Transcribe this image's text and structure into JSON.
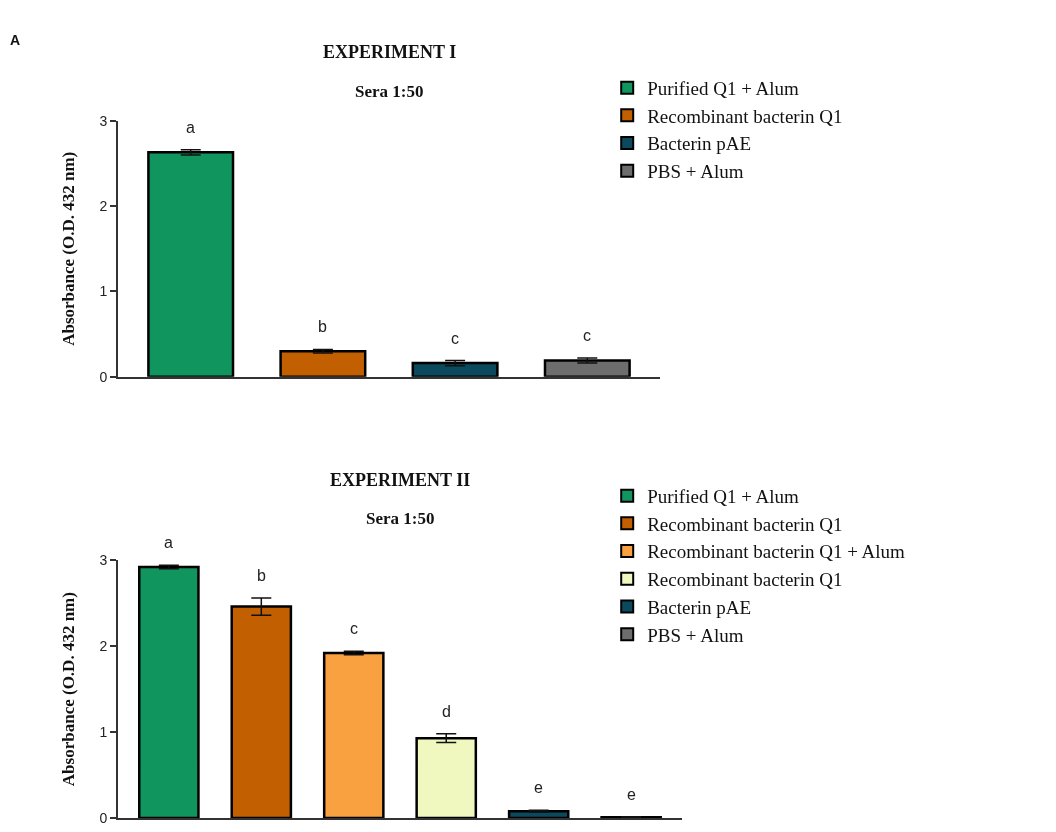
{
  "chart_data": [
    {
      "type": "bar",
      "title": "EXPERIMENT I",
      "subtitle": "Sera 1:50",
      "ylabel": "Absorbance (O.D. 432 nm)",
      "categories": [
        null,
        null,
        null,
        null
      ],
      "ylim": [
        0,
        3
      ],
      "yticks": [
        0,
        1,
        2,
        3
      ],
      "legend": "right",
      "tick_labels": "y",
      "series": [
        {
          "name": "Purified Q1 + Alum",
          "color": "#10955f",
          "values": [
            2.63,
            null,
            null,
            null
          ],
          "errors": [
            0.03,
            null,
            null,
            null
          ]
        },
        {
          "name": "Recombinant bacterin Q1",
          "color": "#c25f00",
          "values": [
            null,
            0.3,
            null,
            null
          ],
          "errors": [
            null,
            0.02,
            null,
            null
          ]
        },
        {
          "name": "Bacterin pAE",
          "color": "#0b4a5e",
          "values": [
            null,
            null,
            0.16,
            null
          ],
          "errors": [
            null,
            null,
            0.03,
            null
          ]
        },
        {
          "name": "PBS + Alum",
          "color": "#6d6d6d",
          "values": [
            null,
            null,
            null,
            0.19
          ],
          "errors": [
            null,
            null,
            null,
            0.03
          ]
        }
      ],
      "annotations": [
        "A",
        "a",
        "b",
        "c",
        "c"
      ]
    },
    {
      "type": "bar",
      "title": "EXPERIMENT II",
      "subtitle": "Sera 1:50",
      "ylabel": "Absorbance (O.D. 432 nm)",
      "categories": [
        null,
        null,
        null,
        null,
        null,
        null
      ],
      "ylim": [
        0,
        3
      ],
      "yticks": [
        0,
        1,
        2,
        3
      ],
      "legend": "right",
      "tick_labels": "y",
      "series": [
        {
          "name": "Purified Q1 + Alum",
          "color": "#10955f",
          "values": [
            2.92,
            null,
            null,
            null,
            null,
            null
          ],
          "errors": [
            0.02,
            null,
            null,
            null,
            null,
            null
          ]
        },
        {
          "name": "Recombinant bacterin Q1",
          "color": "#c25f00",
          "values": [
            null,
            2.46,
            null,
            null,
            null,
            null
          ],
          "errors": [
            null,
            0.1,
            null,
            null,
            null,
            null
          ]
        },
        {
          "name": "Recombinant bacterin Q1 + Alum",
          "color": "#f9a040",
          "values": [
            null,
            null,
            1.92,
            null,
            null,
            null
          ],
          "errors": [
            null,
            null,
            0.02,
            null,
            null,
            null
          ]
        },
        {
          "name": "Recombinant bacterin Q1",
          "color": "#f0f8c0",
          "values": [
            null,
            null,
            null,
            0.93,
            null,
            null
          ],
          "errors": [
            null,
            null,
            null,
            0.05,
            null,
            null
          ]
        },
        {
          "name": "Bacterin pAE",
          "color": "#0b4a5e",
          "values": [
            null,
            null,
            null,
            null,
            0.08,
            null
          ],
          "errors": [
            null,
            null,
            null,
            null,
            0.01,
            null
          ]
        },
        {
          "name": "PBS + Alum",
          "color": "#6d6d6d",
          "values": [
            null,
            null,
            null,
            null,
            null,
            0.01
          ],
          "errors": [
            null,
            null,
            null,
            null,
            null,
            0.005
          ]
        }
      ],
      "annotations": [
        "a",
        "b",
        "c",
        "d",
        "e",
        "e"
      ]
    }
  ]
}
